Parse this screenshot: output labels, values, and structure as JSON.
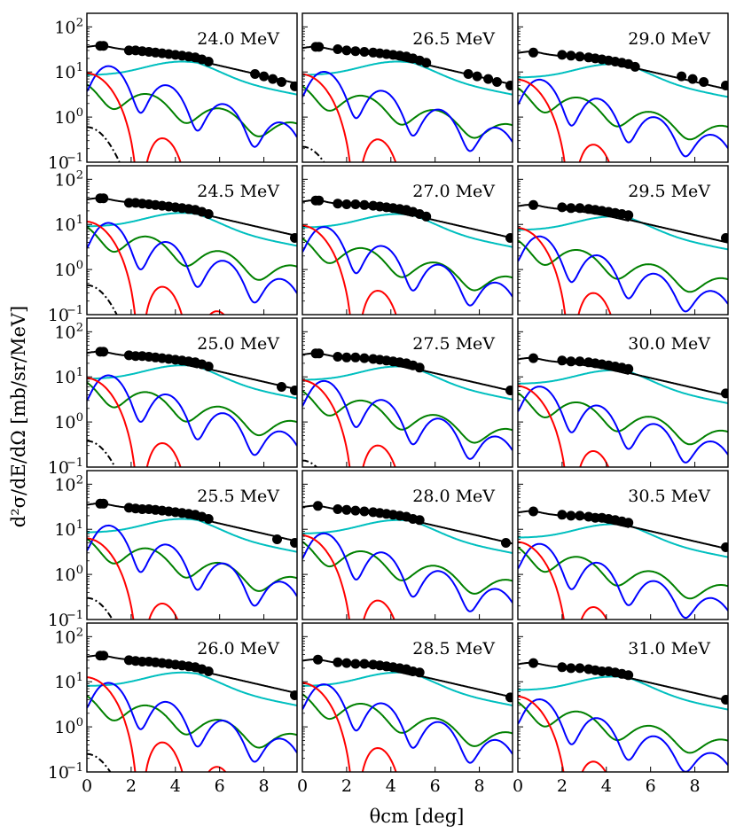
{
  "figure": {
    "ylabel": "d²σ/dE/dΩ [mb/sr/MeV]",
    "xlabel": "θcm [deg]",
    "xticks": [
      "0",
      "2",
      "4",
      "6",
      "8"
    ],
    "yticks": [
      {
        "base": "10",
        "exp": "2"
      },
      {
        "base": "10",
        "exp": "1"
      },
      {
        "base": "10",
        "exp": "0"
      },
      {
        "base": "10",
        "exp": "−1"
      }
    ]
  },
  "colors": {
    "total": "#000000",
    "L0": "#ff0000",
    "L1": "#0000ff",
    "L2": "#008000",
    "L3": "#00bfbf",
    "dashdot": "#000000"
  },
  "chart_data": {
    "type": "line",
    "layout": "5 rows x 3 columns, shared axes",
    "xlabel": "θcm [deg]",
    "ylabel": "d²σ/dE/dΩ [mb/sr/MeV]",
    "xlim": [
      0,
      9.5
    ],
    "ylim": [
      0.1,
      200
    ],
    "yscale": "log",
    "series_colors": [
      "black",
      "red",
      "blue",
      "green",
      "cyan",
      "black dash-dot"
    ],
    "panels": [
      {
        "label": "24.0 MeV",
        "peak_total": 38,
        "l0_max": 9,
        "l1_max": 20,
        "l2_max": 6,
        "l3_max": 17,
        "dashdot": 0.6,
        "points": [
          [
            0.6,
            38
          ],
          [
            0.75,
            38
          ],
          [
            1.9,
            30
          ],
          [
            2.2,
            30
          ],
          [
            2.5,
            29
          ],
          [
            2.8,
            28
          ],
          [
            3.1,
            27
          ],
          [
            3.4,
            26
          ],
          [
            3.7,
            25
          ],
          [
            4.0,
            24
          ],
          [
            4.3,
            23
          ],
          [
            4.6,
            22
          ],
          [
            4.9,
            21
          ],
          [
            5.2,
            19
          ],
          [
            5.5,
            17
          ],
          [
            7.6,
            9.0
          ],
          [
            8.0,
            8.0
          ],
          [
            8.4,
            7.0
          ],
          [
            8.8,
            6.0
          ],
          [
            9.4,
            4.8
          ]
        ]
      },
      {
        "label": "26.5 MeV",
        "peak_total": 36,
        "l0_max": 8.5,
        "l1_max": 15,
        "l2_max": 5.5,
        "l3_max": 17,
        "dashdot": 0.22,
        "points": [
          [
            0.6,
            36
          ],
          [
            0.75,
            36
          ],
          [
            1.6,
            32
          ],
          [
            2.0,
            30
          ],
          [
            2.4,
            29
          ],
          [
            2.8,
            28
          ],
          [
            3.2,
            27
          ],
          [
            3.5,
            26
          ],
          [
            3.8,
            25
          ],
          [
            4.1,
            24
          ],
          [
            4.4,
            23
          ],
          [
            4.7,
            22
          ],
          [
            5.0,
            20
          ],
          [
            5.3,
            18
          ],
          [
            5.6,
            16
          ],
          [
            7.5,
            9.0
          ],
          [
            7.9,
            8.0
          ],
          [
            8.4,
            7.0
          ],
          [
            8.8,
            6.0
          ],
          [
            9.4,
            5.0
          ]
        ]
      },
      {
        "label": "29.0 MeV",
        "peak_total": 28,
        "l0_max": 6.5,
        "l1_max": 10,
        "l2_max": 5,
        "l3_max": 15,
        "dashdot": null,
        "points": [
          [
            0.7,
            27
          ],
          [
            2.0,
            24
          ],
          [
            2.4,
            23
          ],
          [
            2.8,
            22
          ],
          [
            3.2,
            21
          ],
          [
            3.5,
            20
          ],
          [
            3.8,
            19
          ],
          [
            4.1,
            18
          ],
          [
            4.4,
            17
          ],
          [
            4.7,
            16
          ],
          [
            5.0,
            15
          ],
          [
            5.3,
            13
          ],
          [
            7.4,
            8.0
          ],
          [
            7.9,
            7.0
          ],
          [
            8.4,
            6.0
          ],
          [
            9.4,
            5.0
          ]
        ]
      },
      {
        "label": "24.5 MeV",
        "peak_total": 38,
        "l0_max": 11,
        "l1_max": 16,
        "l2_max": 10,
        "l3_max": 18,
        "dashdot": 0.45,
        "points": [
          [
            0.6,
            38
          ],
          [
            0.75,
            38
          ],
          [
            1.9,
            30
          ],
          [
            2.2,
            30
          ],
          [
            2.5,
            29
          ],
          [
            2.8,
            28
          ],
          [
            3.1,
            27
          ],
          [
            3.4,
            26
          ],
          [
            3.7,
            25
          ],
          [
            4.0,
            24
          ],
          [
            4.3,
            23
          ],
          [
            4.6,
            22
          ],
          [
            4.9,
            21
          ],
          [
            5.2,
            19
          ],
          [
            5.5,
            17
          ],
          [
            9.4,
            5.0
          ]
        ]
      },
      {
        "label": "27.0 MeV",
        "peak_total": 34,
        "l0_max": 9,
        "l1_max": 13,
        "l2_max": 5.5,
        "l3_max": 17,
        "dashdot": null,
        "points": [
          [
            0.6,
            34
          ],
          [
            0.75,
            34
          ],
          [
            1.6,
            29
          ],
          [
            2.0,
            28
          ],
          [
            2.4,
            28
          ],
          [
            2.8,
            27
          ],
          [
            3.2,
            26
          ],
          [
            3.5,
            25
          ],
          [
            3.8,
            24
          ],
          [
            4.1,
            23
          ],
          [
            4.4,
            22
          ],
          [
            4.7,
            21
          ],
          [
            5.0,
            19
          ],
          [
            5.3,
            17
          ],
          [
            5.6,
            15
          ],
          [
            9.4,
            5.0
          ]
        ]
      },
      {
        "label": "29.5 MeV",
        "peak_total": 27,
        "l0_max": 8,
        "l1_max": 8,
        "l2_max": 5,
        "l3_max": 15,
        "dashdot": null,
        "points": [
          [
            0.7,
            27
          ],
          [
            2.0,
            24
          ],
          [
            2.4,
            23
          ],
          [
            2.8,
            23
          ],
          [
            3.2,
            22
          ],
          [
            3.5,
            21
          ],
          [
            3.8,
            20
          ],
          [
            4.1,
            19
          ],
          [
            4.4,
            18
          ],
          [
            4.7,
            17
          ],
          [
            5.0,
            16
          ],
          [
            9.4,
            5.0
          ]
        ]
      },
      {
        "label": "25.0 MeV",
        "peak_total": 36,
        "l0_max": 9,
        "l1_max": 16,
        "l2_max": 8.5,
        "l3_max": 18,
        "dashdot": 0.38,
        "points": [
          [
            0.6,
            36
          ],
          [
            0.75,
            36
          ],
          [
            1.9,
            30
          ],
          [
            2.2,
            29
          ],
          [
            2.5,
            29
          ],
          [
            2.8,
            28
          ],
          [
            3.1,
            27
          ],
          [
            3.4,
            26
          ],
          [
            3.7,
            25
          ],
          [
            4.0,
            24
          ],
          [
            4.3,
            23
          ],
          [
            4.6,
            22
          ],
          [
            4.9,
            21
          ],
          [
            5.2,
            19
          ],
          [
            5.5,
            17
          ],
          [
            8.8,
            6.0
          ],
          [
            9.4,
            5.0
          ]
        ]
      },
      {
        "label": "27.5 MeV",
        "peak_total": 33,
        "l0_max": 8,
        "l1_max": 12,
        "l2_max": 5.5,
        "l3_max": 17,
        "dashdot": 0.14,
        "points": [
          [
            0.6,
            33
          ],
          [
            0.75,
            33
          ],
          [
            1.6,
            28
          ],
          [
            2.0,
            27
          ],
          [
            2.4,
            27
          ],
          [
            2.8,
            26
          ],
          [
            3.2,
            25
          ],
          [
            3.5,
            24
          ],
          [
            3.8,
            23
          ],
          [
            4.1,
            22
          ],
          [
            4.4,
            21
          ],
          [
            4.7,
            20
          ],
          [
            5.0,
            18
          ],
          [
            5.3,
            16
          ],
          [
            9.4,
            5.0
          ]
        ]
      },
      {
        "label": "30.0 MeV",
        "peak_total": 26,
        "l0_max": 6,
        "l1_max": 9,
        "l2_max": 5,
        "l3_max": 14,
        "dashdot": null,
        "points": [
          [
            0.7,
            26
          ],
          [
            2.0,
            23
          ],
          [
            2.4,
            22
          ],
          [
            2.8,
            22
          ],
          [
            3.2,
            21
          ],
          [
            3.5,
            20
          ],
          [
            3.8,
            19
          ],
          [
            4.1,
            18
          ],
          [
            4.4,
            17
          ],
          [
            4.7,
            16
          ],
          [
            5.0,
            15
          ],
          [
            9.4,
            4.3
          ]
        ]
      },
      {
        "label": "25.5 MeV",
        "peak_total": 37,
        "l0_max": 6,
        "l1_max": 18,
        "l2_max": 7,
        "l3_max": 17,
        "dashdot": 0.3,
        "points": [
          [
            0.6,
            37
          ],
          [
            0.75,
            37
          ],
          [
            1.9,
            30
          ],
          [
            2.2,
            29
          ],
          [
            2.5,
            28
          ],
          [
            2.8,
            28
          ],
          [
            3.1,
            27
          ],
          [
            3.4,
            26
          ],
          [
            3.7,
            25
          ],
          [
            4.0,
            24
          ],
          [
            4.3,
            23
          ],
          [
            4.6,
            22
          ],
          [
            4.9,
            21
          ],
          [
            5.2,
            19
          ],
          [
            5.5,
            17
          ],
          [
            8.6,
            6.0
          ],
          [
            9.4,
            5.0
          ]
        ]
      },
      {
        "label": "28.0 MeV",
        "peak_total": 33,
        "l0_max": 7,
        "l1_max": 12,
        "l2_max": 6,
        "l3_max": 16,
        "dashdot": null,
        "points": [
          [
            0.7,
            33
          ],
          [
            1.6,
            28
          ],
          [
            2.0,
            27
          ],
          [
            2.4,
            26
          ],
          [
            2.8,
            25
          ],
          [
            3.2,
            24
          ],
          [
            3.5,
            23
          ],
          [
            3.8,
            22
          ],
          [
            4.1,
            21
          ],
          [
            4.4,
            20
          ],
          [
            4.7,
            19
          ],
          [
            5.0,
            17
          ],
          [
            5.3,
            16
          ],
          [
            9.2,
            5.0
          ]
        ]
      },
      {
        "label": "30.5 MeV",
        "peak_total": 25,
        "l0_max": 5,
        "l1_max": 7,
        "l2_max": 4.5,
        "l3_max": 13,
        "dashdot": null,
        "points": [
          [
            0.7,
            25
          ],
          [
            2.0,
            21
          ],
          [
            2.4,
            20
          ],
          [
            2.8,
            20
          ],
          [
            3.2,
            19
          ],
          [
            3.5,
            18
          ],
          [
            3.8,
            18
          ],
          [
            4.1,
            17
          ],
          [
            4.4,
            16
          ],
          [
            4.7,
            15
          ],
          [
            5.0,
            14
          ],
          [
            9.4,
            4.0
          ]
        ]
      },
      {
        "label": "26.0 MeV",
        "peak_total": 38,
        "l0_max": 12,
        "l1_max": 14,
        "l2_max": 5.5,
        "l3_max": 16,
        "dashdot": 0.25,
        "points": [
          [
            0.6,
            38
          ],
          [
            0.75,
            38
          ],
          [
            1.9,
            30
          ],
          [
            2.2,
            29
          ],
          [
            2.5,
            28
          ],
          [
            2.8,
            28
          ],
          [
            3.1,
            27
          ],
          [
            3.4,
            26
          ],
          [
            3.7,
            25
          ],
          [
            4.0,
            24
          ],
          [
            4.3,
            23
          ],
          [
            4.6,
            22
          ],
          [
            4.9,
            21
          ],
          [
            5.2,
            19
          ],
          [
            5.5,
            17
          ],
          [
            9.4,
            5.0
          ]
        ]
      },
      {
        "label": "28.5 MeV",
        "peak_total": 31,
        "l0_max": 9,
        "l1_max": 13,
        "l2_max": 6,
        "l3_max": 16,
        "dashdot": null,
        "points": [
          [
            0.7,
            31
          ],
          [
            1.6,
            27
          ],
          [
            2.0,
            26
          ],
          [
            2.4,
            25
          ],
          [
            2.8,
            25
          ],
          [
            3.2,
            24
          ],
          [
            3.5,
            23
          ],
          [
            3.8,
            22
          ],
          [
            4.1,
            21
          ],
          [
            4.4,
            20
          ],
          [
            4.7,
            19
          ],
          [
            5.0,
            17
          ],
          [
            5.3,
            16
          ],
          [
            9.4,
            4.5
          ]
        ]
      },
      {
        "label": "31.0 MeV",
        "peak_total": 26,
        "l0_max": 4.5,
        "l1_max": 6,
        "l2_max": 4,
        "l3_max": 13,
        "dashdot": null,
        "points": [
          [
            0.7,
            26
          ],
          [
            2.0,
            21
          ],
          [
            2.4,
            20
          ],
          [
            2.8,
            20
          ],
          [
            3.2,
            19
          ],
          [
            3.5,
            18
          ],
          [
            3.8,
            17
          ],
          [
            4.1,
            17
          ],
          [
            4.4,
            16
          ],
          [
            4.7,
            15
          ],
          [
            5.0,
            14
          ],
          [
            9.4,
            4.0
          ]
        ]
      }
    ]
  }
}
